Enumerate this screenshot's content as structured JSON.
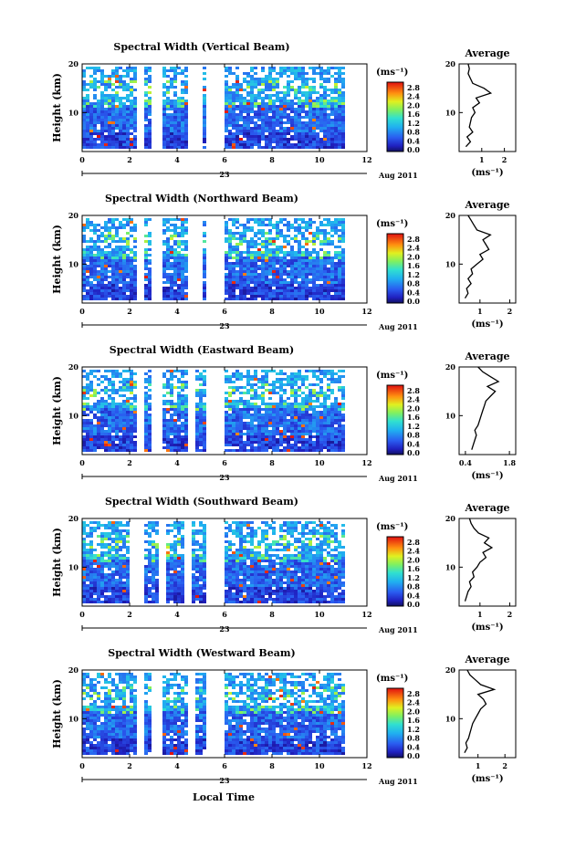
{
  "figure": {
    "xlabel": "Local Time",
    "date_label": "23",
    "date_suffix": "Aug 2011",
    "avg_title": "Average",
    "unit_label": "(ms⁻¹)"
  },
  "chart_data": [
    {
      "type": "heatmap",
      "title": "Spectral Width (Vertical Beam)",
      "ylabel": "Height (km)",
      "xlabel": "",
      "x_ticks": [
        "0",
        "2",
        "4",
        "6",
        "8",
        "10",
        "12"
      ],
      "y_ticks": [
        "20",
        "10"
      ],
      "xlim": [
        0,
        12
      ],
      "ylim": [
        2,
        20
      ],
      "colorbar_unit": "(ms⁻¹)",
      "colorbar_ticks": [
        "2.8",
        "2.4",
        "2.0",
        "1.6",
        "1.2",
        "0.8",
        "0.4",
        "0.0"
      ],
      "data_gaps_hours": [
        [
          2.3,
          2.5
        ],
        [
          2.8,
          3.3
        ],
        [
          4.4,
          5.0
        ],
        [
          5.1,
          5.9
        ],
        [
          11.0,
          12.0
        ]
      ],
      "average_profile": {
        "x_ticks": [
          "1",
          "2"
        ],
        "xlim": [
          0,
          2.5
        ],
        "y_ticks": [
          "20",
          "10"
        ],
        "height_km": [
          3,
          4,
          5,
          6,
          7,
          8,
          9,
          10,
          11,
          12,
          13,
          14,
          15,
          16,
          17,
          18,
          19,
          20
        ],
        "values": [
          0.3,
          0.5,
          0.35,
          0.6,
          0.45,
          0.5,
          0.55,
          0.7,
          0.6,
          0.9,
          0.75,
          1.4,
          1.1,
          0.6,
          0.5,
          0.4,
          0.45,
          0.4
        ]
      }
    },
    {
      "type": "heatmap",
      "title": "Spectral Width (Northward Beam)",
      "ylabel": "Height (km)",
      "xlabel": "",
      "x_ticks": [
        "0",
        "2",
        "4",
        "6",
        "8",
        "10",
        "12"
      ],
      "y_ticks": [
        "20",
        "10"
      ],
      "xlim": [
        0,
        12
      ],
      "ylim": [
        2,
        20
      ],
      "colorbar_unit": "(ms⁻¹)",
      "colorbar_ticks": [
        "2.8",
        "2.4",
        "2.0",
        "1.6",
        "1.2",
        "0.8",
        "0.4",
        "0.0"
      ],
      "data_gaps_hours": [
        [
          2.3,
          2.5
        ],
        [
          2.8,
          3.3
        ],
        [
          4.4,
          5.0
        ],
        [
          5.1,
          5.9
        ],
        [
          11.0,
          12.0
        ]
      ],
      "average_profile": {
        "x_ticks": [
          "1",
          "2"
        ],
        "xlim": [
          0.3,
          2.2
        ],
        "y_ticks": [
          "20",
          "10"
        ],
        "height_km": [
          3,
          4,
          5,
          6,
          7,
          8,
          9,
          10,
          11,
          12,
          13,
          14,
          15,
          16,
          17,
          18,
          19,
          20
        ],
        "values": [
          0.5,
          0.6,
          0.55,
          0.7,
          0.6,
          0.75,
          0.7,
          0.9,
          1.1,
          1.0,
          1.3,
          1.2,
          1.1,
          1.35,
          0.9,
          0.8,
          0.7,
          0.6
        ]
      }
    },
    {
      "type": "heatmap",
      "title": "Spectral Width (Eastward Beam)",
      "ylabel": "Height (km)",
      "xlabel": "",
      "x_ticks": [
        "0",
        "2",
        "4",
        "6",
        "8",
        "10",
        "12"
      ],
      "y_ticks": [
        "20",
        "10"
      ],
      "xlim": [
        0,
        12
      ],
      "ylim": [
        2,
        20
      ],
      "colorbar_unit": "(ms⁻¹)",
      "colorbar_ticks": [
        "2.8",
        "2.4",
        "2.0",
        "1.6",
        "1.2",
        "0.8",
        "0.4",
        "0.0"
      ],
      "data_gaps_hours": [
        [
          2.3,
          2.5
        ],
        [
          2.8,
          3.3
        ],
        [
          4.4,
          4.7
        ],
        [
          5.1,
          5.9
        ],
        [
          11.0,
          12.0
        ]
      ],
      "average_profile": {
        "x_ticks": [
          "0.4",
          "1.8"
        ],
        "xlim": [
          0.2,
          2.0
        ],
        "y_ticks": [
          "20",
          "10"
        ],
        "height_km": [
          3,
          4,
          5,
          6,
          7,
          8,
          9,
          10,
          11,
          12,
          13,
          14,
          15,
          16,
          17,
          18,
          19,
          20
        ],
        "values": [
          0.6,
          0.65,
          0.7,
          0.75,
          0.7,
          0.8,
          0.85,
          0.9,
          0.95,
          1.0,
          1.05,
          1.2,
          1.35,
          1.1,
          1.45,
          1.2,
          0.95,
          0.8
        ]
      }
    },
    {
      "type": "heatmap",
      "title": "Spectral Width (Southward Beam)",
      "ylabel": "Height (km)",
      "xlabel": "",
      "x_ticks": [
        "0",
        "2",
        "4",
        "6",
        "8",
        "10",
        "12"
      ],
      "y_ticks": [
        "20",
        "10"
      ],
      "xlim": [
        0,
        12
      ],
      "ylim": [
        2,
        20
      ],
      "colorbar_unit": "(ms⁻¹)",
      "colorbar_ticks": [
        "2.8",
        "2.4",
        "2.0",
        "1.6",
        "1.2",
        "0.8",
        "0.4",
        "0.0"
      ],
      "data_gaps_hours": [
        [
          2.0,
          2.5
        ],
        [
          3.2,
          3.5
        ],
        [
          4.3,
          4.6
        ],
        [
          5.1,
          6.0
        ],
        [
          11.0,
          12.0
        ]
      ],
      "average_profile": {
        "x_ticks": [
          "1",
          "2"
        ],
        "xlim": [
          0.3,
          2.2
        ],
        "y_ticks": [
          "20",
          "10"
        ],
        "height_km": [
          3,
          4,
          5,
          6,
          7,
          8,
          9,
          10,
          11,
          12,
          13,
          14,
          15,
          16,
          17,
          18,
          19,
          20
        ],
        "values": [
          0.5,
          0.55,
          0.6,
          0.7,
          0.65,
          0.8,
          0.75,
          0.9,
          1.0,
          1.2,
          1.1,
          1.4,
          1.15,
          1.3,
          0.95,
          0.8,
          0.7,
          0.65
        ]
      }
    },
    {
      "type": "heatmap",
      "title": "Spectral Width (Westward Beam)",
      "ylabel": "Height (km)",
      "xlabel": "Local Time",
      "x_ticks": [
        "0",
        "2",
        "4",
        "6",
        "8",
        "10",
        "12"
      ],
      "y_ticks": [
        "20",
        "10"
      ],
      "xlim": [
        0,
        12
      ],
      "ylim": [
        2,
        20
      ],
      "colorbar_unit": "(ms⁻¹)",
      "colorbar_ticks": [
        "2.8",
        "2.4",
        "2.0",
        "1.6",
        "1.2",
        "0.8",
        "0.4",
        "0.0"
      ],
      "data_gaps_hours": [
        [
          2.2,
          2.5
        ],
        [
          2.8,
          3.3
        ],
        [
          4.4,
          4.7
        ],
        [
          5.1,
          5.9
        ],
        [
          11.0,
          12.0
        ]
      ],
      "average_profile": {
        "x_ticks": [
          "1",
          "2"
        ],
        "xlim": [
          0.3,
          2.4
        ],
        "y_ticks": [
          "20",
          "10"
        ],
        "height_km": [
          3,
          4,
          5,
          6,
          7,
          8,
          9,
          10,
          11,
          12,
          13,
          14,
          15,
          16,
          17,
          18,
          19,
          20
        ],
        "values": [
          0.5,
          0.6,
          0.55,
          0.65,
          0.7,
          0.75,
          0.8,
          0.9,
          1.0,
          1.1,
          1.3,
          1.2,
          1.0,
          1.6,
          1.1,
          0.9,
          0.7,
          0.6
        ]
      }
    }
  ]
}
